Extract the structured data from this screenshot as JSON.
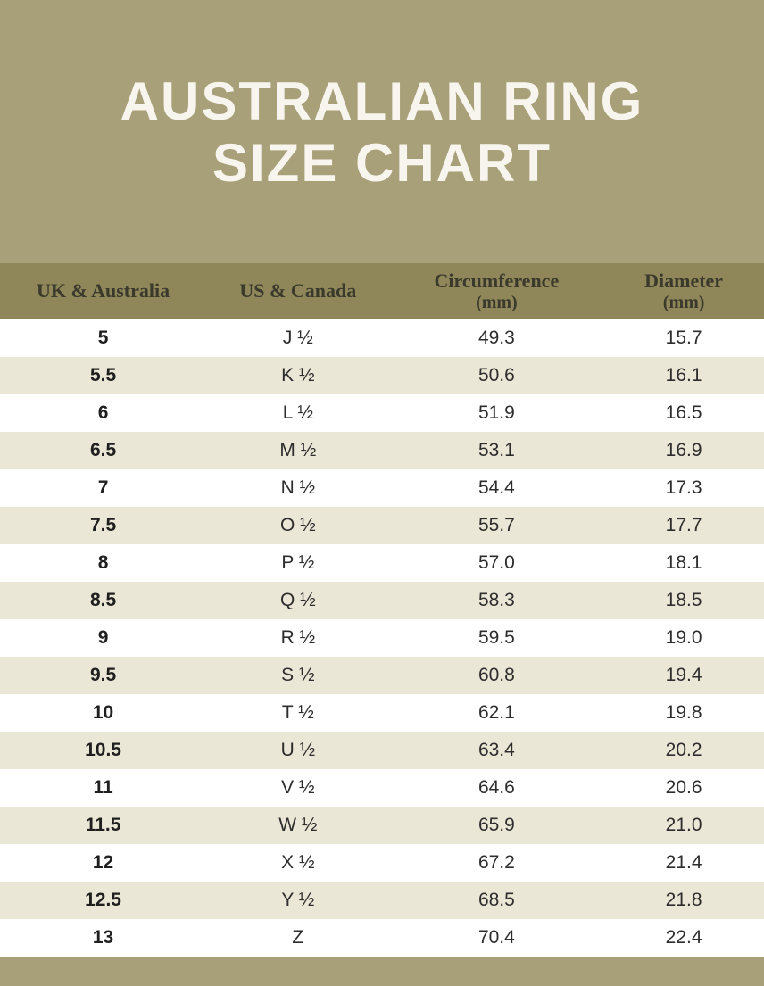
{
  "title": {
    "line1": "AUSTRALIAN RING",
    "line2": "SIZE CHART"
  },
  "colors": {
    "band": "#a8a078",
    "header_band": "#8f8759",
    "tinted_row": "#ebe7d6",
    "white_row": "#ffffff",
    "title_text": "#f7f5ee",
    "header_text": "#3a392c",
    "body_text": "#2d2d2d"
  },
  "table": {
    "headers": [
      {
        "label": "UK & Australia",
        "sub": ""
      },
      {
        "label": "US & Canada",
        "sub": ""
      },
      {
        "label": "Circumference",
        "sub": "(mm)"
      },
      {
        "label": "Diameter",
        "sub": "(mm)"
      }
    ]
  },
  "chart_data": {
    "type": "table",
    "title": "Australian Ring Size Chart",
    "columns": [
      "UK & Australia",
      "US & Canada",
      "Circumference (mm)",
      "Diameter (mm)"
    ],
    "rows": [
      [
        "5",
        "J ½",
        "49.3",
        "15.7"
      ],
      [
        "5.5",
        "K ½",
        "50.6",
        "16.1"
      ],
      [
        "6",
        "L ½",
        "51.9",
        "16.5"
      ],
      [
        "6.5",
        "M ½",
        "53.1",
        "16.9"
      ],
      [
        "7",
        "N ½",
        "54.4",
        "17.3"
      ],
      [
        "7.5",
        "O ½",
        "55.7",
        "17.7"
      ],
      [
        "8",
        "P ½",
        "57.0",
        "18.1"
      ],
      [
        "8.5",
        "Q ½",
        "58.3",
        "18.5"
      ],
      [
        "9",
        "R ½",
        "59.5",
        "19.0"
      ],
      [
        "9.5",
        "S ½",
        "60.8",
        "19.4"
      ],
      [
        "10",
        "T ½",
        "62.1",
        "19.8"
      ],
      [
        "10.5",
        "U ½",
        "63.4",
        "20.2"
      ],
      [
        "11",
        "V ½",
        "64.6",
        "20.6"
      ],
      [
        "11.5",
        "W ½",
        "65.9",
        "21.0"
      ],
      [
        "12",
        "X ½",
        "67.2",
        "21.4"
      ],
      [
        "12.5",
        "Y ½",
        "68.5",
        "21.8"
      ],
      [
        "13",
        "Z",
        "70.4",
        "22.4"
      ]
    ]
  }
}
